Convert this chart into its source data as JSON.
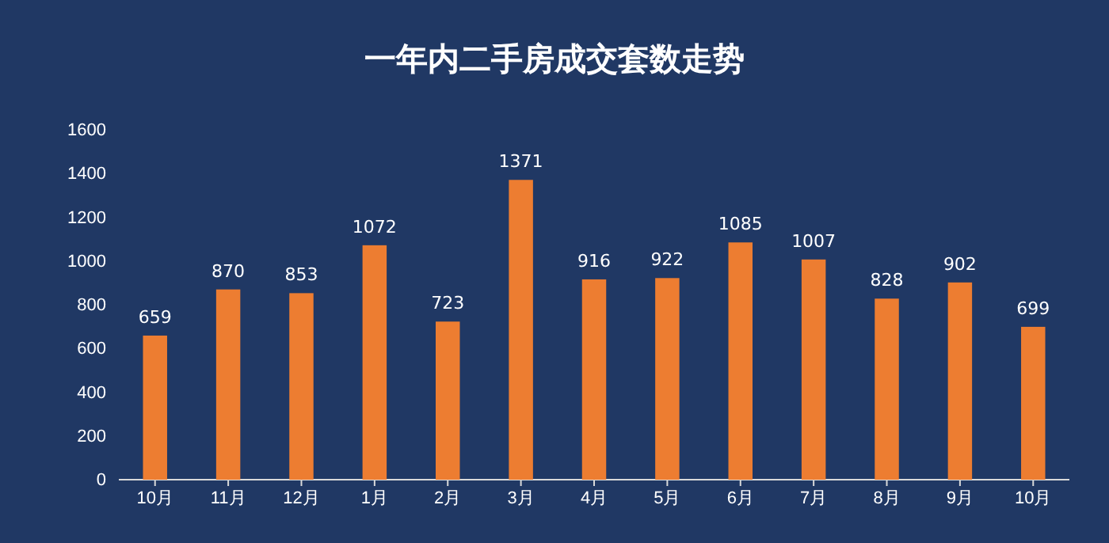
{
  "chart_data": {
    "type": "bar",
    "title": "一年内二手房成交套数走势",
    "categories": [
      "10月",
      "11月",
      "12月",
      "1月",
      "2月",
      "3月",
      "4月",
      "5月",
      "6月",
      "7月",
      "8月",
      "9月",
      "10月"
    ],
    "values": [
      659,
      870,
      853,
      1072,
      723,
      1371,
      916,
      922,
      1085,
      1007,
      828,
      902,
      699
    ],
    "color": "#ed7d31",
    "ylim": [
      0,
      1600
    ],
    "yticks": [
      0,
      200,
      400,
      600,
      800,
      1000,
      1200,
      1400,
      1600
    ],
    "grid": false,
    "data_labels": true
  }
}
